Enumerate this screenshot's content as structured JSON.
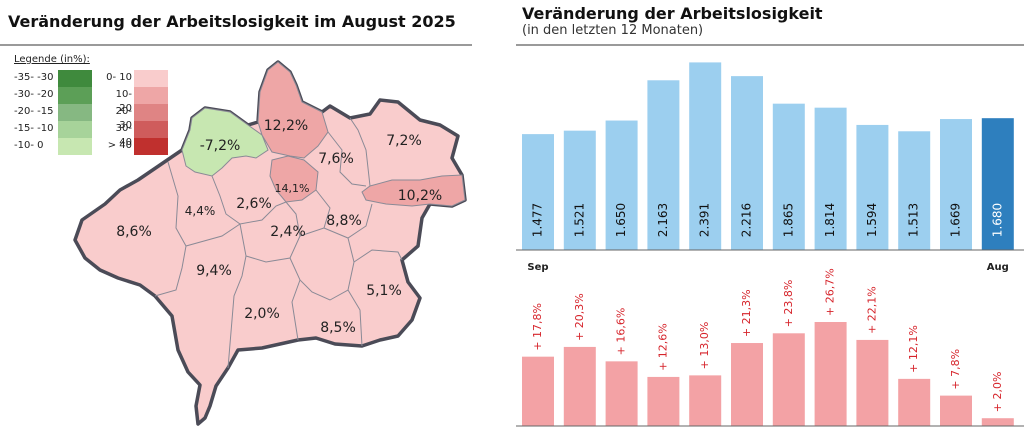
{
  "left_panel": {
    "title": "Veränderung der Arbeitslosigkeit im August 2025",
    "legend": {
      "title": "Legende (in%):",
      "negative": [
        {
          "label": "-35- -30",
          "color": "#3f8a3d"
        },
        {
          "label": "-30- -20",
          "color": "#5c9f57"
        },
        {
          "label": "-20- -15",
          "color": "#86b882"
        },
        {
          "label": "-15- -10",
          "color": "#a7d39a"
        },
        {
          "label": "-10- 0",
          "color": "#c7e7b1"
        }
      ],
      "positive": [
        {
          "label": "0- 10",
          "color": "#f9cccc"
        },
        {
          "label": "10- 20",
          "color": "#eea6a6"
        },
        {
          "label": "20- 30",
          "color": "#df8484"
        },
        {
          "label": "30- 40",
          "color": "#cf5c5c"
        },
        {
          "label": "> 40",
          "color": "#c0302e"
        }
      ]
    },
    "map": {
      "district_labels": [
        "-7,2%",
        "12,2%",
        "7,2%",
        "7,6%",
        "14,1%",
        "10,2%",
        "4,4%",
        "2,6%",
        "8,6%",
        "8,8%",
        "2,4%",
        "9,4%",
        "5,1%",
        "2,0%",
        "8,5%"
      ],
      "colors": {
        "light": "#f9cccc",
        "medium": "#eea6a6",
        "green": "#c7e7b1",
        "border": "#4b4b57"
      }
    }
  },
  "right_panel": {
    "title": "Veränderung der Arbeitslosigkeit",
    "subtitle": "(in den letzten 12 Monaten)",
    "colors": {
      "bar": "#9ccfef",
      "bar_highlight": "#2e7fbe",
      "pct_bar": "#f3a2a5",
      "pct_text": "#d6242b"
    }
  },
  "chart_data": [
    {
      "type": "bar",
      "categories": [
        "Sep",
        "",
        "",
        "",
        "",
        "",
        "",
        "",
        "",
        "",
        "",
        "Aug"
      ],
      "values": [
        1477,
        1521,
        1650,
        2163,
        2391,
        2216,
        1865,
        1814,
        1594,
        1513,
        1669,
        1680
      ],
      "value_labels": [
        "1.477",
        "1.521",
        "1.650",
        "2.163",
        "2.391",
        "2.216",
        "1.865",
        "1.814",
        "1.594",
        "1.513",
        "1.669",
        "1.680"
      ],
      "highlight_index": 11,
      "title": "",
      "xlabel": "",
      "ylabel": "",
      "ylim": [
        0,
        2600
      ]
    },
    {
      "type": "bar",
      "categories": [
        "Sep",
        "",
        "",
        "",
        "",
        "",
        "",
        "",
        "",
        "",
        "",
        "Aug"
      ],
      "values": [
        17.8,
        20.3,
        16.6,
        12.6,
        13.0,
        21.3,
        23.8,
        26.7,
        22.1,
        12.1,
        7.8,
        2.0
      ],
      "value_labels": [
        "+ 17,8%",
        "+ 20,3%",
        "+ 16,6%",
        "+ 12,6%",
        "+ 13,0%",
        "+ 21,3%",
        "+ 23,8%",
        "+ 26,7%",
        "+ 22,1%",
        "+ 12,1%",
        "+ 7,8%",
        "+ 2,0%"
      ],
      "title": "",
      "xlabel": "",
      "ylabel": "",
      "ylim": [
        0,
        30
      ]
    }
  ]
}
